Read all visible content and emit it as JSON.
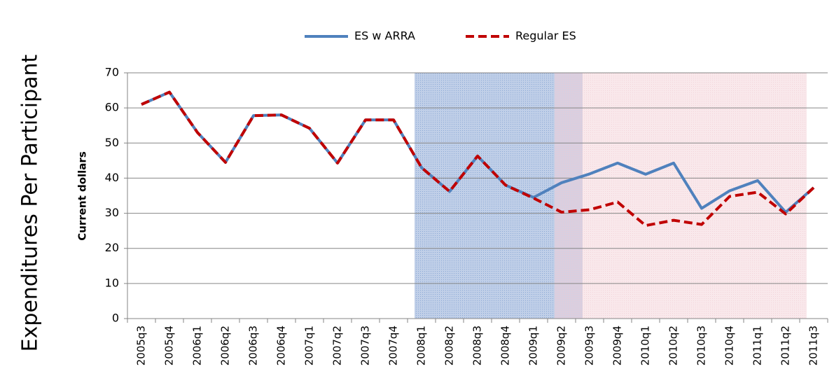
{
  "chart_data": {
    "type": "line",
    "ylabel": "Current dollars",
    "side_title": "Expenditures Per Participant",
    "categories": [
      "2005q3",
      "2005q4",
      "2006q1",
      "2006q2",
      "2006q3",
      "2006q4",
      "2007q1",
      "2007q2",
      "2007q3",
      "2007q4",
      "2008q1",
      "2008q2",
      "2008q3",
      "2008q4",
      "2009q1",
      "2009q2",
      "2009q3",
      "2009q4",
      "2010q1",
      "2010q2",
      "2010q3",
      "2010q4",
      "2011q1",
      "2011q2",
      "2011q3"
    ],
    "series": [
      {
        "name": "ES w ARRA",
        "color": "#4f81bd",
        "dash": false,
        "values": [
          61,
          64.5,
          53,
          44.5,
          57.8,
          58,
          54.2,
          44.3,
          56.6,
          56.6,
          43,
          36.2,
          46.3,
          38,
          34.5,
          38.7,
          41.2,
          44.3,
          41.1,
          44.3,
          31.4,
          36.4,
          39.3,
          30.3,
          37.3
        ]
      },
      {
        "name": "Regular ES",
        "color": "#c00000",
        "dash": true,
        "values": [
          61,
          64.5,
          53,
          44.5,
          57.8,
          58,
          54.2,
          44.3,
          56.6,
          56.6,
          43,
          36.2,
          46.3,
          38,
          34.3,
          30.3,
          31,
          33.2,
          26.5,
          28,
          26.8,
          34.8,
          36,
          29.8,
          37.3
        ]
      }
    ],
    "shaded_regions": [
      {
        "start": "2008q1",
        "end": "2009q2",
        "color": "#7f9fd0"
      },
      {
        "start": "2009q2",
        "end": "2011q2",
        "color": "#f2cfd6"
      }
    ],
    "ylim": [
      0,
      70
    ],
    "yticks": [
      0,
      10,
      20,
      30,
      40,
      50,
      60,
      70
    ],
    "grid": true,
    "legend": "top"
  }
}
